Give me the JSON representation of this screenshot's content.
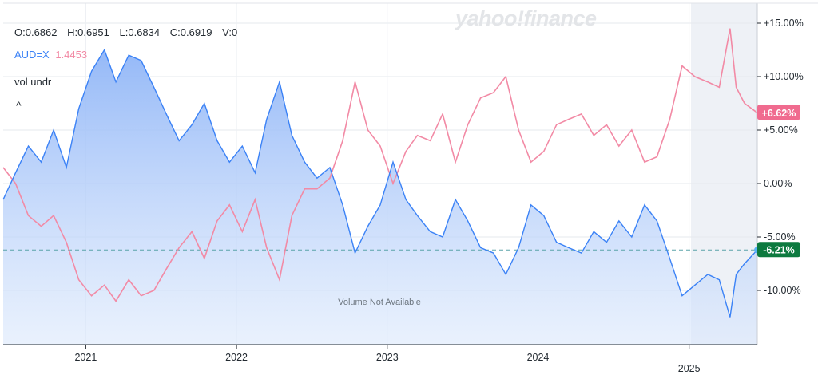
{
  "header": {
    "open": "O:0.6862",
    "high": "H:0.6951",
    "low": "L:0.6834",
    "close": "C:0.6919",
    "volume": "V:0",
    "ticker": "AUD=X",
    "compare_value": "1.4453",
    "volume_toggle": "vol undr",
    "collapse_glyph": "^"
  },
  "watermark": "yahoo!finance",
  "volume_note": "Volume Not Available",
  "colors": {
    "primary": "#3b82f6",
    "compare": "#f28aa5",
    "positive_badge": "#f06b8f",
    "negative_badge": "#0d7a3f"
  },
  "chart_data": {
    "type": "line",
    "y_unit": "percent change",
    "ylim": [
      -15,
      15
    ],
    "y_ticks": [
      "+15.00%",
      "+10.00%",
      "+5.00%",
      "0.00%",
      "-5.00%",
      "-10.00%"
    ],
    "x_ticks": [
      "2021",
      "2022",
      "2023",
      "2024",
      "2025"
    ],
    "grid": true,
    "reference_line": -6.21,
    "last_values": [
      "-6.21%",
      "+6.62%"
    ],
    "series": [
      {
        "name": "AUD=X",
        "points": [
          [
            "2020-06-15",
            -1.5
          ],
          [
            "2020-07-15",
            1.0
          ],
          [
            "2020-08-15",
            3.5
          ],
          [
            "2020-09-15",
            2.0
          ],
          [
            "2020-10-15",
            5.0
          ],
          [
            "2020-11-15",
            1.5
          ],
          [
            "2020-12-15",
            7.0
          ],
          [
            "2021-01-15",
            10.5
          ],
          [
            "2021-02-15",
            12.5
          ],
          [
            "2021-03-15",
            9.5
          ],
          [
            "2021-04-15",
            12.0
          ],
          [
            "2021-05-15",
            11.5
          ],
          [
            "2021-06-15",
            9.0
          ],
          [
            "2021-07-15",
            6.5
          ],
          [
            "2021-08-15",
            4.0
          ],
          [
            "2021-09-15",
            5.5
          ],
          [
            "2021-10-15",
            7.5
          ],
          [
            "2021-11-15",
            4.0
          ],
          [
            "2021-12-15",
            2.0
          ],
          [
            "2022-01-15",
            3.5
          ],
          [
            "2022-02-15",
            1.0
          ],
          [
            "2022-03-15",
            6.0
          ],
          [
            "2022-04-15",
            9.5
          ],
          [
            "2022-05-15",
            4.5
          ],
          [
            "2022-06-15",
            2.0
          ],
          [
            "2022-07-15",
            0.5
          ],
          [
            "2022-08-15",
            1.5
          ],
          [
            "2022-09-15",
            -2.0
          ],
          [
            "2022-10-15",
            -6.5
          ],
          [
            "2022-11-15",
            -4.0
          ],
          [
            "2022-12-15",
            -2.0
          ],
          [
            "2023-01-15",
            2.0
          ],
          [
            "2023-02-15",
            -1.5
          ],
          [
            "2023-03-15",
            -3.0
          ],
          [
            "2023-04-15",
            -4.5
          ],
          [
            "2023-05-15",
            -5.0
          ],
          [
            "2023-06-15",
            -1.5
          ],
          [
            "2023-07-15",
            -3.5
          ],
          [
            "2023-08-15",
            -6.0
          ],
          [
            "2023-09-15",
            -6.5
          ],
          [
            "2023-10-15",
            -8.5
          ],
          [
            "2023-11-15",
            -6.0
          ],
          [
            "2023-12-15",
            -2.0
          ],
          [
            "2024-01-15",
            -3.0
          ],
          [
            "2024-02-15",
            -5.5
          ],
          [
            "2024-03-15",
            -6.0
          ],
          [
            "2024-04-15",
            -6.5
          ],
          [
            "2024-05-15",
            -4.5
          ],
          [
            "2024-06-15",
            -5.5
          ],
          [
            "2024-07-15",
            -3.5
          ],
          [
            "2024-08-15",
            -5.0
          ],
          [
            "2024-09-15",
            -2.0
          ],
          [
            "2024-10-15",
            -3.5
          ],
          [
            "2024-11-15",
            -7.0
          ],
          [
            "2024-12-15",
            -10.5
          ],
          [
            "2025-01-15",
            -9.5
          ],
          [
            "2025-02-15",
            -8.5
          ],
          [
            "2025-03-15",
            -9.0
          ],
          [
            "2025-04-10",
            -12.5
          ],
          [
            "2025-04-25",
            -8.5
          ],
          [
            "2025-05-15",
            -7.5
          ],
          [
            "2025-06-15",
            -6.21
          ]
        ]
      },
      {
        "name": "",
        "points": [
          [
            "2020-06-15",
            1.5
          ],
          [
            "2020-07-15",
            0.0
          ],
          [
            "2020-08-15",
            -3.0
          ],
          [
            "2020-09-15",
            -4.0
          ],
          [
            "2020-10-15",
            -3.0
          ],
          [
            "2020-11-15",
            -5.5
          ],
          [
            "2020-12-15",
            -9.0
          ],
          [
            "2021-01-15",
            -10.5
          ],
          [
            "2021-02-15",
            -9.5
          ],
          [
            "2021-03-15",
            -11.0
          ],
          [
            "2021-04-15",
            -9.0
          ],
          [
            "2021-05-15",
            -10.5
          ],
          [
            "2021-06-15",
            -10.0
          ],
          [
            "2021-07-15",
            -8.0
          ],
          [
            "2021-08-15",
            -6.0
          ],
          [
            "2021-09-15",
            -4.5
          ],
          [
            "2021-10-15",
            -7.0
          ],
          [
            "2021-11-15",
            -3.5
          ],
          [
            "2021-12-15",
            -2.0
          ],
          [
            "2022-01-15",
            -4.5
          ],
          [
            "2022-02-15",
            -1.5
          ],
          [
            "2022-03-15",
            -6.0
          ],
          [
            "2022-04-15",
            -9.0
          ],
          [
            "2022-05-15",
            -3.0
          ],
          [
            "2022-06-15",
            -0.5
          ],
          [
            "2022-07-15",
            -0.5
          ],
          [
            "2022-08-15",
            0.5
          ],
          [
            "2022-09-15",
            4.0
          ],
          [
            "2022-10-15",
            9.5
          ],
          [
            "2022-11-15",
            5.0
          ],
          [
            "2022-12-15",
            3.5
          ],
          [
            "2023-01-15",
            0.0
          ],
          [
            "2023-02-15",
            3.0
          ],
          [
            "2023-03-15",
            4.5
          ],
          [
            "2023-04-15",
            4.0
          ],
          [
            "2023-05-15",
            6.5
          ],
          [
            "2023-06-15",
            2.0
          ],
          [
            "2023-07-15",
            5.5
          ],
          [
            "2023-08-15",
            8.0
          ],
          [
            "2023-09-15",
            8.5
          ],
          [
            "2023-10-15",
            10.0
          ],
          [
            "2023-11-15",
            5.0
          ],
          [
            "2023-12-15",
            2.0
          ],
          [
            "2024-01-15",
            3.0
          ],
          [
            "2024-02-15",
            5.5
          ],
          [
            "2024-03-15",
            6.0
          ],
          [
            "2024-04-15",
            6.5
          ],
          [
            "2024-05-15",
            4.5
          ],
          [
            "2024-06-15",
            5.5
          ],
          [
            "2024-07-15",
            3.5
          ],
          [
            "2024-08-15",
            5.0
          ],
          [
            "2024-09-15",
            2.0
          ],
          [
            "2024-10-15",
            2.5
          ],
          [
            "2024-11-15",
            6.0
          ],
          [
            "2024-12-15",
            11.0
          ],
          [
            "2025-01-15",
            10.0
          ],
          [
            "2025-02-15",
            9.5
          ],
          [
            "2025-03-15",
            9.0
          ],
          [
            "2025-04-10",
            14.5
          ],
          [
            "2025-04-25",
            9.0
          ],
          [
            "2025-05-15",
            7.5
          ],
          [
            "2025-06-15",
            6.62
          ]
        ]
      }
    ]
  }
}
